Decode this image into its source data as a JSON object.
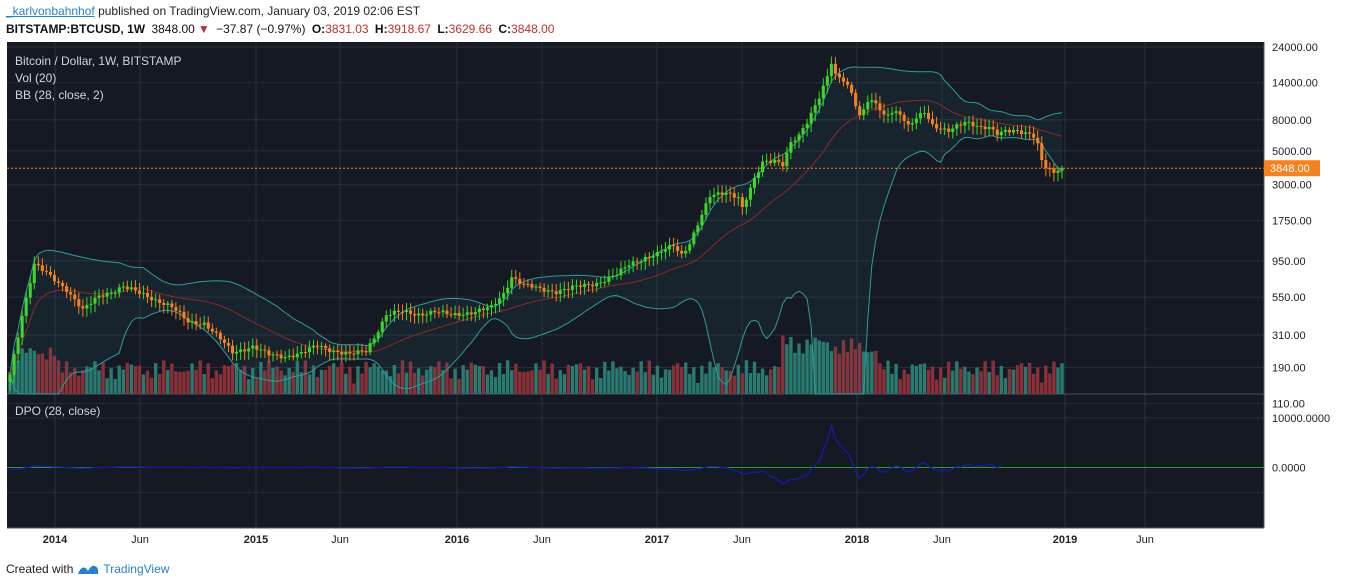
{
  "header": {
    "author": "_karlvonbahnhof",
    "published_text": "published on TradingView.com, January 03, 2019 02:06 EST",
    "symbol": "BITSTAMP:BTCUSD, 1W",
    "price": "3848.00",
    "change": "−37.87 (−0.97%)",
    "o_label": "O:",
    "o_value": "3831.03",
    "h_label": "H:",
    "h_value": "3918.67",
    "l_label": "L:",
    "l_value": "3629.66",
    "c_label": "C:",
    "c_value": "3848.00"
  },
  "legend": {
    "line1": "Bitcoin / Dollar, 1W, BITSTAMP",
    "line2": "Vol (20)",
    "line3": "BB (28, close, 2)",
    "dpo": "DPO (28, close)"
  },
  "footer": {
    "created_with": "Created with",
    "brand": "TradingView"
  },
  "colors": {
    "background": "#151924",
    "grid": "#2a2e39",
    "up": "#3fd62a",
    "down": "#f4821f",
    "basis": "#8b2a2a",
    "band": "#2f9c9c",
    "dpo": "#1a1aa8",
    "zero": "#2a9c2a",
    "price_line": "#f4821f",
    "vol_up": "#2a7a70",
    "vol_down": "#8a3038"
  },
  "chart_data": {
    "type": "candlestick",
    "scale": "log",
    "interval": "1W",
    "last_price": 3848.0,
    "price_ticks": [
      24000,
      14000,
      8000,
      5000,
      3000,
      1750,
      950,
      550,
      310,
      190,
      110
    ],
    "price_tick_labels": [
      "24000.00",
      "14000.00",
      "8000.00",
      "5000.00",
      "3000.00",
      "1750.00",
      "950.00",
      "550.00",
      "310.00",
      "190.00",
      "110.00"
    ],
    "x_ticks": [
      "2014",
      "Jun",
      "2015",
      "Jun",
      "2016",
      "Jun",
      "2017",
      "Jun",
      "2018",
      "Jun",
      "2019",
      "Jun"
    ],
    "close_keypoints": [
      [
        0,
        170
      ],
      [
        3,
        420
      ],
      [
        6,
        900
      ],
      [
        10,
        750
      ],
      [
        14,
        620
      ],
      [
        18,
        450
      ],
      [
        22,
        560
      ],
      [
        28,
        640
      ],
      [
        34,
        560
      ],
      [
        40,
        470
      ],
      [
        44,
        380
      ],
      [
        48,
        370
      ],
      [
        52,
        290
      ],
      [
        55,
        240
      ],
      [
        60,
        260
      ],
      [
        64,
        230
      ],
      [
        68,
        225
      ],
      [
        72,
        235
      ],
      [
        76,
        265
      ],
      [
        80,
        245
      ],
      [
        84,
        230
      ],
      [
        88,
        245
      ],
      [
        90,
        300
      ],
      [
        93,
        420
      ],
      [
        97,
        440
      ],
      [
        101,
        425
      ],
      [
        105,
        440
      ],
      [
        109,
        420
      ],
      [
        112,
        430
      ],
      [
        115,
        440
      ],
      [
        119,
        470
      ],
      [
        122,
        580
      ],
      [
        124,
        750
      ],
      [
        127,
        660
      ],
      [
        131,
        620
      ],
      [
        135,
        600
      ],
      [
        140,
        640
      ],
      [
        145,
        680
      ],
      [
        150,
        770
      ],
      [
        153,
        900
      ],
      [
        157,
        1000
      ],
      [
        160,
        1050
      ],
      [
        164,
        1200
      ],
      [
        166,
        1050
      ],
      [
        168,
        1250
      ],
      [
        170,
        1650
      ],
      [
        173,
        2500
      ],
      [
        175,
        2600
      ],
      [
        177,
        2700
      ],
      [
        180,
        2500
      ],
      [
        181,
        2100
      ],
      [
        183,
        2800
      ],
      [
        186,
        4200
      ],
      [
        189,
        4400
      ],
      [
        191,
        4100
      ],
      [
        193,
        5600
      ],
      [
        195,
        6200
      ],
      [
        197,
        7700
      ],
      [
        200,
        11500
      ],
      [
        202,
        15500
      ],
      [
        203,
        19000
      ],
      [
        204,
        15500
      ],
      [
        206,
        14300
      ],
      [
        208,
        12000
      ],
      [
        210,
        8500
      ],
      [
        212,
        10800
      ],
      [
        214,
        10300
      ],
      [
        216,
        8300
      ],
      [
        218,
        8900
      ],
      [
        220,
        8800
      ],
      [
        222,
        7400
      ],
      [
        224,
        8300
      ],
      [
        226,
        8900
      ],
      [
        228,
        7200
      ],
      [
        230,
        6900
      ],
      [
        232,
        6900
      ],
      [
        234,
        7400
      ],
      [
        236,
        7700
      ],
      [
        238,
        7300
      ],
      [
        240,
        7000
      ],
      [
        242,
        7200
      ],
      [
        244,
        6600
      ],
      [
        246,
        6800
      ],
      [
        248,
        6700
      ],
      [
        250,
        6500
      ],
      [
        252,
        6400
      ],
      [
        253,
        6300
      ],
      [
        254,
        5600
      ],
      [
        255,
        4400
      ],
      [
        256,
        4000
      ],
      [
        257,
        3800
      ],
      [
        258,
        3550
      ],
      [
        259,
        3750
      ],
      [
        260,
        3848
      ]
    ],
    "dpo": {
      "ylim": [
        -5000,
        15000
      ],
      "y_ticks": [
        10000,
        0
      ],
      "y_tick_labels": [
        "10000.0000",
        "0.0000"
      ]
    }
  }
}
